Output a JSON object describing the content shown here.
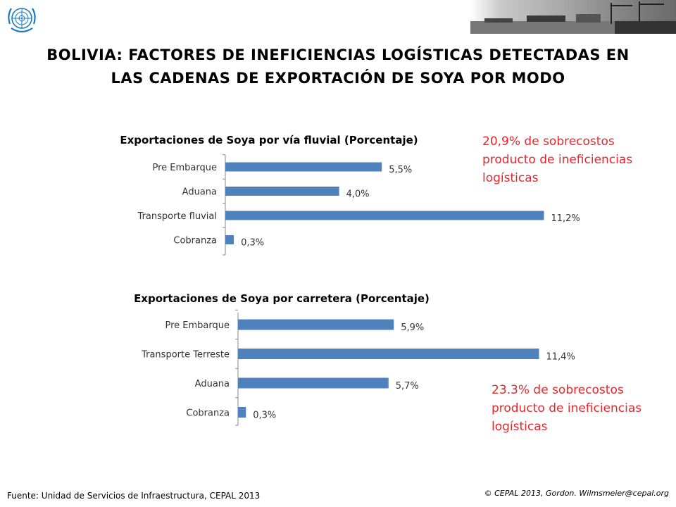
{
  "header": {
    "title_line1": "BOLIVIA: FACTORES DE INEFICIENCIAS LOGÍSTICAS DETECTADAS EN",
    "title_line2": "LAS CADENAS DE EXPORTACIÓN DE SOYA POR MODO"
  },
  "colors": {
    "bar": "#4f81bd",
    "note": "#e8262b",
    "logo": "#1a7ac0"
  },
  "chart_data": [
    {
      "type": "bar",
      "orientation": "horizontal",
      "title": "Exportaciones de Soya por vía fluvial (Porcentaje)",
      "categories": [
        "Pre Embarque",
        "Aduana",
        "Transporte fluvial",
        "Cobranza"
      ],
      "values": [
        5.5,
        4.0,
        11.2,
        0.3
      ],
      "labels": [
        "5,5%",
        "4,0%",
        "11,2%",
        "0,3%"
      ],
      "xlim": [
        0,
        12
      ]
    },
    {
      "type": "bar",
      "orientation": "horizontal",
      "title": "Exportaciones de Soya por carretera (Porcentaje)",
      "categories": [
        "Pre Embarque",
        "Transporte Terreste",
        "Aduana",
        "Cobranza"
      ],
      "values": [
        5.9,
        11.4,
        5.7,
        0.3
      ],
      "labels": [
        "5,9%",
        "11,4%",
        "5,7%",
        "0,3%"
      ],
      "xlim": [
        0,
        12
      ]
    }
  ],
  "notes": {
    "fluvial": "20,9% de sobrecostos producto de ineficiencias logísticas",
    "carretera": "23.3% de sobrecostos producto de ineficiencias logísticas"
  },
  "footer": {
    "source": "Fuente: Unidad de Servicios de Infraestructura, CEPAL 2013",
    "copyright": "© CEPAL 2013, Gordon. Wilmsmeier@cepal.org"
  }
}
